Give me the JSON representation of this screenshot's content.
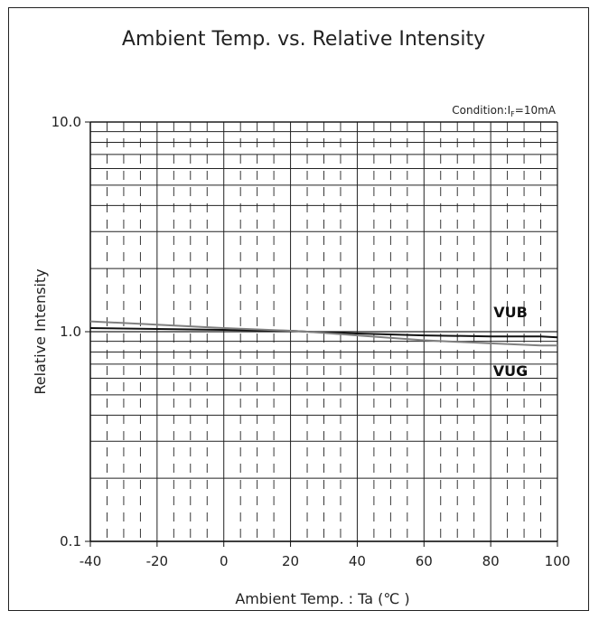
{
  "chart_data": {
    "type": "line",
    "title": "Ambient Temp. vs. Relative Intensity",
    "xlabel": "Ambient Temp. : Ta (℃ )",
    "ylabel": "Relative Intensity",
    "annotation": {
      "prefix": "Condition:I",
      "sub": "F",
      "suffix": "=10mA"
    },
    "x_scale": "linear",
    "y_scale": "log",
    "xlim": [
      -40,
      100
    ],
    "ylim": [
      0.1,
      10
    ],
    "x_ticks": [
      -40,
      -20,
      0,
      20,
      40,
      60,
      80,
      100
    ],
    "x_tick_labels": [
      "-40",
      "-20",
      "0",
      "20",
      "40",
      "60",
      "80",
      "100"
    ],
    "y_ticks": [
      0.1,
      1,
      10
    ],
    "y_tick_labels": [
      "0.1",
      "1.0",
      "10.0"
    ],
    "grid": true,
    "series": [
      {
        "name": "VUB",
        "color": "#111111",
        "x": [
          -40,
          -20,
          0,
          20,
          25,
          40,
          60,
          80,
          95,
          100
        ],
        "y": [
          1.04,
          1.03,
          1.02,
          1.01,
          1.0,
          0.98,
          0.96,
          0.95,
          0.95,
          0.94
        ]
      },
      {
        "name": "VUG",
        "color": "#808080",
        "x": [
          -40,
          -20,
          0,
          20,
          25,
          40,
          60,
          80,
          95,
          100
        ],
        "y": [
          1.12,
          1.08,
          1.04,
          1.01,
          1.0,
          0.96,
          0.91,
          0.88,
          0.86,
          0.86
        ]
      }
    ]
  }
}
